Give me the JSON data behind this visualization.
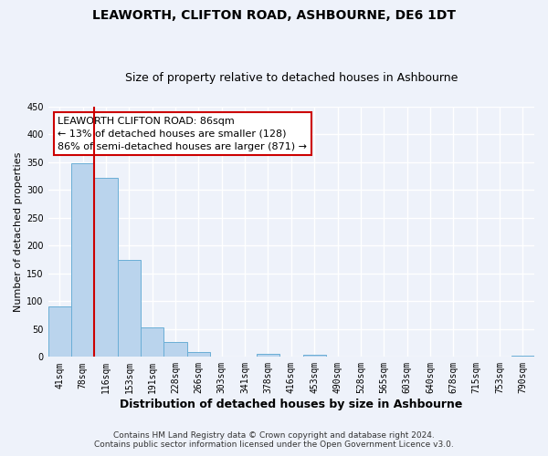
{
  "title": "LEAWORTH, CLIFTON ROAD, ASHBOURNE, DE6 1DT",
  "subtitle": "Size of property relative to detached houses in Ashbourne",
  "xlabel": "Distribution of detached houses by size in Ashbourne",
  "ylabel": "Number of detached properties",
  "bar_labels": [
    "41sqm",
    "78sqm",
    "116sqm",
    "153sqm",
    "191sqm",
    "228sqm",
    "266sqm",
    "303sqm",
    "341sqm",
    "378sqm",
    "416sqm",
    "453sqm",
    "490sqm",
    "528sqm",
    "565sqm",
    "603sqm",
    "640sqm",
    "678sqm",
    "715sqm",
    "753sqm",
    "790sqm"
  ],
  "bar_values": [
    90,
    348,
    322,
    175,
    53,
    26,
    9,
    0,
    0,
    5,
    0,
    4,
    0,
    0,
    0,
    0,
    0,
    0,
    0,
    0,
    3
  ],
  "bar_color": "#bad4ed",
  "bar_edge_color": "#6aaed6",
  "vline_x_idx": 1.5,
  "vline_color": "#cc0000",
  "annotation_text_line1": "LEAWORTH CLIFTON ROAD: 86sqm",
  "annotation_text_line2": "← 13% of detached houses are smaller (128)",
  "annotation_text_line3": "86% of semi-detached houses are larger (871) →",
  "annotation_box_color": "#ffffff",
  "annotation_box_edge": "#cc0000",
  "ylim": [
    0,
    450
  ],
  "yticks": [
    0,
    50,
    100,
    150,
    200,
    250,
    300,
    350,
    400,
    450
  ],
  "footer_line1": "Contains HM Land Registry data © Crown copyright and database right 2024.",
  "footer_line2": "Contains public sector information licensed under the Open Government Licence v3.0.",
  "title_fontsize": 10,
  "subtitle_fontsize": 9,
  "xlabel_fontsize": 9,
  "ylabel_fontsize": 8,
  "tick_fontsize": 7,
  "footer_fontsize": 6.5,
  "annotation_fontsize": 8,
  "background_color": "#eef2fa",
  "grid_color": "#ffffff",
  "plot_bg_color": "#eef2fa"
}
